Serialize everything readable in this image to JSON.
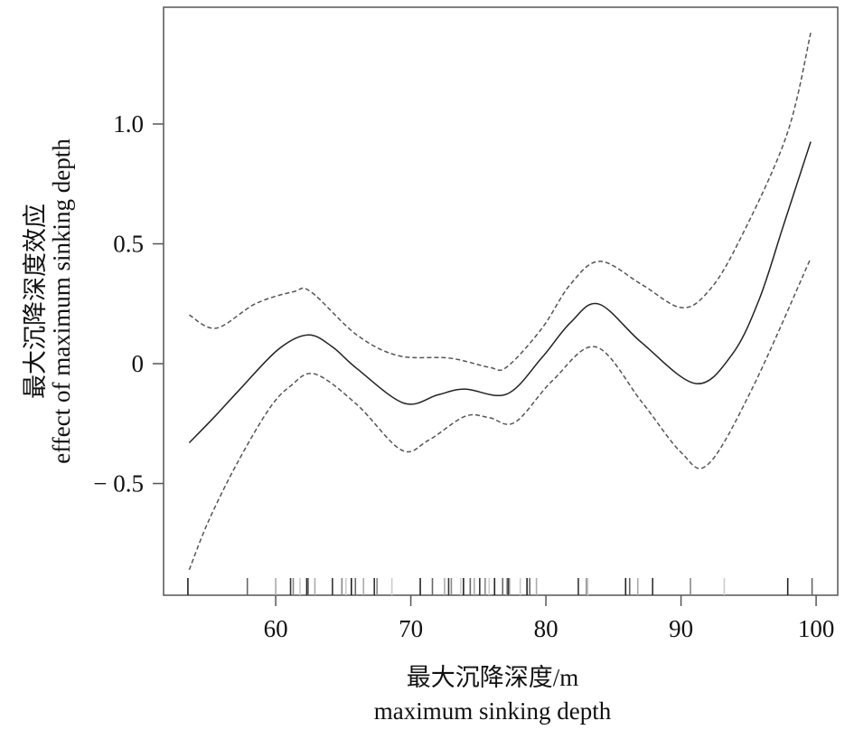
{
  "chart_data": {
    "type": "line",
    "title": "",
    "xlabel": [
      "最大沉降深度/m",
      "maximum sinking depth"
    ],
    "ylabel": [
      "最大沉降深度效应",
      "effect of maximum sinking depth"
    ],
    "xlim": [
      51.7,
      101.6
    ],
    "ylim": [
      -0.966,
      1.487
    ],
    "xticks": [
      60,
      70,
      80,
      90,
      100
    ],
    "xtick_labels": [
      "60",
      "70",
      "80",
      "90",
      "100"
    ],
    "yticks": [
      1.0,
      0.5,
      0,
      -0.5
    ],
    "ytick_labels": [
      "1.0",
      "0.5",
      "0",
      "− 0.5"
    ],
    "grid": false,
    "series": [
      {
        "role": "fit",
        "style": "solid",
        "color": "#222222",
        "x": [
          53.6,
          55.5,
          57.3,
          60.2,
          62.4,
          64.2,
          66.0,
          69.5,
          72.0,
          74.0,
          77.1,
          79.7,
          81.8,
          83.9,
          87.1,
          91.1,
          93.8,
          95.8,
          97.6,
          99.6
        ],
        "y": [
          -0.33,
          -0.22,
          -0.11,
          0.06,
          0.12,
          0.07,
          -0.02,
          -0.165,
          -0.13,
          -0.106,
          -0.127,
          0.025,
          0.17,
          0.249,
          0.087,
          -0.083,
          0.04,
          0.27,
          0.58,
          0.926
        ]
      },
      {
        "role": "upper-band",
        "style": "dashed",
        "color": "#555555",
        "x": [
          53.6,
          55.6,
          58.5,
          61.3,
          62.6,
          66.0,
          69.1,
          72.9,
          75.8,
          77.1,
          79.7,
          81.8,
          84.0,
          87.1,
          90.0,
          92.0,
          94.2,
          97.8,
          99.6
        ],
        "y": [
          0.203,
          0.148,
          0.25,
          0.3,
          0.3,
          0.12,
          0.033,
          0.023,
          -0.015,
          -0.014,
          0.147,
          0.33,
          0.427,
          0.33,
          0.234,
          0.3,
          0.5,
          0.95,
          1.38
        ]
      },
      {
        "role": "lower-band",
        "style": "dashed",
        "color": "#555555",
        "x": [
          53.6,
          55.0,
          57.1,
          59.5,
          61.1,
          62.9,
          66.0,
          69.3,
          71.3,
          74.0,
          75.8,
          77.7,
          80.5,
          83.7,
          87.1,
          90.0,
          92.0,
          95.3,
          99.6
        ],
        "y": [
          -0.86,
          -0.66,
          -0.42,
          -0.19,
          -0.093,
          -0.043,
          -0.17,
          -0.36,
          -0.32,
          -0.22,
          -0.225,
          -0.245,
          -0.07,
          0.07,
          -0.16,
          -0.37,
          -0.42,
          -0.1,
          0.44
        ]
      }
    ],
    "rug": [
      53.5,
      57.9,
      60.0,
      61.1,
      61.3,
      61.8,
      62.3,
      62.4,
      62.9,
      64.2,
      64.9,
      65.2,
      65.6,
      65.9,
      66.5,
      67.3,
      67.5,
      68.6,
      70.7,
      71.6,
      72.5,
      72.8,
      73.0,
      73.7,
      73.9,
      74.4,
      74.7,
      75.1,
      75.5,
      75.8,
      76.2,
      76.8,
      77.1,
      77.2,
      77.3,
      78.1,
      78.6,
      78.8,
      79.3,
      82.4,
      83.0,
      83.1,
      85.9,
      86.2,
      86.8,
      87.9,
      90.7,
      93.2,
      97.9,
      99.7
    ]
  }
}
